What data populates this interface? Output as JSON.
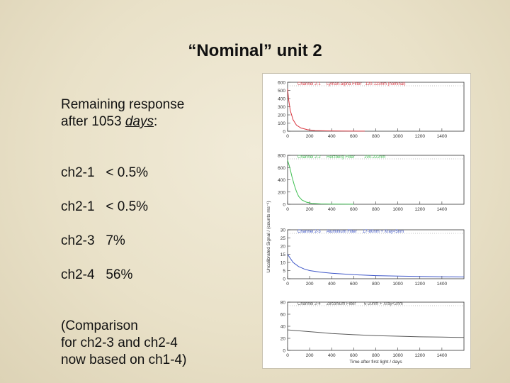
{
  "slide": {
    "title": "“Nominal” unit 2",
    "intro_line1": "Remaining response",
    "intro_line2_prefix": "after 1053 ",
    "intro_line2_link": "days",
    "intro_line2_suffix": ":",
    "items": [
      "ch2-1   < 0.5%",
      "ch2-1   < 0.5%",
      "ch2-3   7%",
      "ch2-4   56%"
    ],
    "note_lines": [
      "(Comparison",
      "for ch2-3 and ch2-4",
      "now based on ch1-4)"
    ]
  },
  "chart_data": [
    {
      "type": "line",
      "label": "Channel 2-1     Lyman-alpha Filter   120-123nm (nominal)",
      "color": "#d9343e",
      "xlim": [
        0,
        1600
      ],
      "ylim": [
        0,
        600
      ],
      "yticks": [
        "0",
        "100",
        "200",
        "300",
        "400",
        "500",
        "600"
      ],
      "xticks": [
        "0",
        "200",
        "400",
        "600",
        "800",
        "1000",
        "1200",
        "1400"
      ],
      "x": [
        0,
        10,
        25,
        50,
        80,
        120,
        180,
        250,
        350,
        500,
        700
      ],
      "y": [
        520,
        380,
        250,
        140,
        75,
        40,
        18,
        8,
        4,
        2,
        1
      ]
    },
    {
      "type": "line",
      "label": "Channel 2-2     Herzberg Filter        190-222nm",
      "color": "#3fbf52",
      "xlim": [
        0,
        1600
      ],
      "ylim": [
        0,
        800
      ],
      "yticks": [
        "0",
        "200",
        "400",
        "600",
        "800"
      ],
      "xticks": [
        "0",
        "200",
        "400",
        "600",
        "800",
        "1000",
        "1200",
        "1400"
      ],
      "x": [
        0,
        20,
        40,
        60,
        80,
        100,
        130,
        170,
        220,
        300,
        400,
        600
      ],
      "y": [
        720,
        600,
        450,
        320,
        210,
        130,
        70,
        35,
        15,
        6,
        3,
        1
      ]
    },
    {
      "type": "line",
      "label": "Channel 2-3     Aluminium Filter     17-80nm + Xray<5nm",
      "color": "#3f57c8",
      "xlim": [
        0,
        1600
      ],
      "ylim": [
        0,
        30
      ],
      "yticks": [
        "0",
        "5",
        "10",
        "15",
        "20",
        "25",
        "30"
      ],
      "xticks": [
        "0",
        "200",
        "400",
        "600",
        "800",
        "1000",
        "1200",
        "1400"
      ],
      "x": [
        0,
        20,
        50,
        100,
        150,
        200,
        300,
        400,
        600,
        800,
        1000,
        1200,
        1400,
        1600
      ],
      "y": [
        15,
        13,
        10,
        7.5,
        6,
        5,
        4,
        3.4,
        2.5,
        1.9,
        1.6,
        1.4,
        1.2,
        1.1
      ]
    },
    {
      "type": "line",
      "label": "Channel 2-4     Zirconium Filter       6-20nm + Xray<2nm",
      "color": "#5a5a5a",
      "xlim": [
        0,
        1600
      ],
      "ylim": [
        0,
        80
      ],
      "yticks": [
        "0",
        "20",
        "40",
        "60",
        "80"
      ],
      "xticks": [
        "0",
        "200",
        "400",
        "600",
        "800",
        "1000",
        "1200",
        "1400"
      ],
      "x": [
        0,
        100,
        200,
        300,
        400,
        600,
        800,
        1000,
        1200,
        1400,
        1600
      ],
      "y": [
        34,
        32.5,
        31,
        29.5,
        28,
        26,
        24.5,
        23.5,
        22.5,
        22,
        21.5
      ],
      "xlabel": "Time after first light / days"
    }
  ],
  "shared_ylabel": "Uncalibrated Signal / (counts ms⁻¹)"
}
